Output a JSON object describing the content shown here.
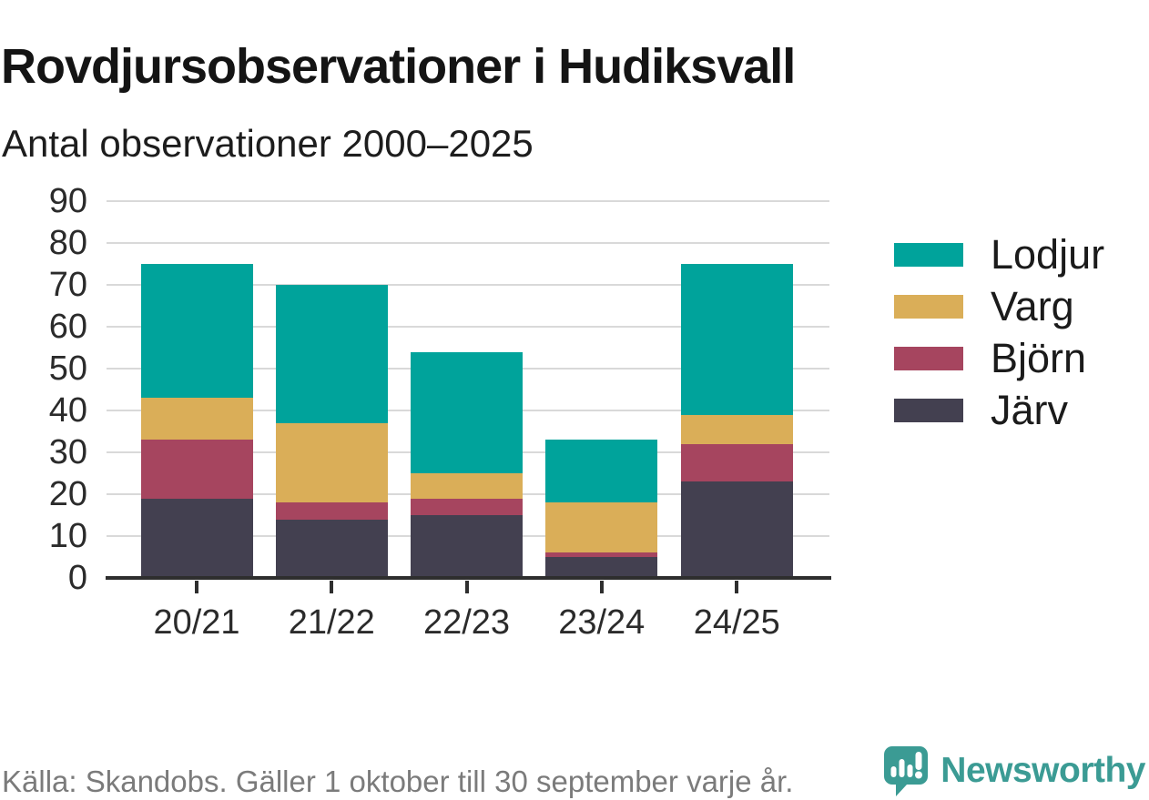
{
  "chart_data": {
    "type": "bar",
    "stacked": true,
    "title": "Rovdjursobservationer i Hudiksvall",
    "subtitle": "Antal observationer 2000–2025",
    "categories": [
      "20/21",
      "21/22",
      "22/23",
      "23/24",
      "24/25"
    ],
    "series": [
      {
        "name": "Lodjur",
        "color": "#00A39B",
        "values": [
          32,
          33,
          29,
          15,
          36
        ]
      },
      {
        "name": "Varg",
        "color": "#DAAE58",
        "values": [
          10,
          19,
          6,
          12,
          7
        ]
      },
      {
        "name": "Björn",
        "color": "#A6455F",
        "values": [
          14,
          4,
          4,
          1,
          9
        ]
      },
      {
        "name": "Järv",
        "color": "#434050",
        "values": [
          19,
          14,
          15,
          5,
          23
        ]
      }
    ],
    "xlabel": "",
    "ylabel": "",
    "ylim": [
      0,
      90
    ],
    "yticks": [
      0,
      10,
      20,
      30,
      40,
      50,
      60,
      70,
      80,
      90
    ],
    "grid": true,
    "legend_position": "right"
  },
  "footer": {
    "source": "Källa: Skandobs. Gäller 1 oktober till 30 september varje år.",
    "brand": {
      "name": "Newsworthy",
      "icon": "newsworthy-speech-bubble-bar-chart-icon",
      "color": "#3B9B94"
    }
  },
  "colors": {
    "background": "#FFFFFF",
    "gridline": "#D9D9D9",
    "axis": "#2E2E2E",
    "text": "#1C1C1C",
    "muted_text": "#7B7B7B",
    "brand_teal": "#3B9B94"
  }
}
